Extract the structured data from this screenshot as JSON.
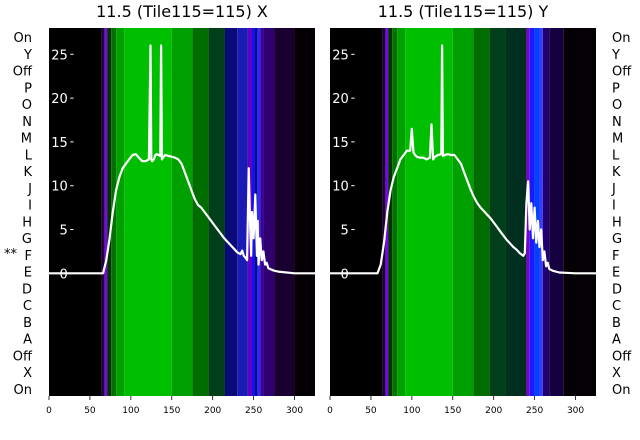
{
  "row_labels_left": [
    "On",
    "Y",
    "Off",
    "P",
    "O",
    "N",
    "M",
    "L",
    "K",
    "J",
    "I",
    "H",
    "G",
    "F",
    "E",
    "D",
    "C",
    "B",
    "A",
    "Off",
    "X",
    "On"
  ],
  "row_labels_right": [
    "On",
    "Y",
    "Off",
    "P",
    "O",
    "N",
    "M",
    "L",
    "K",
    "J",
    "I",
    "H",
    "G",
    "F",
    "E",
    "D",
    "C",
    "B",
    "A",
    "Off",
    "X",
    "On"
  ],
  "marker_text": "**",
  "marker_row": "F",
  "colors": {
    "background_dark": "#000000",
    "green": "#00cc00",
    "blue": "#0000ff",
    "purple": "#8000ff",
    "curve": "#ffffff"
  },
  "chart_data": [
    {
      "type": "heatmap",
      "title": "11.5 (Tile115=115) X",
      "xlabel": "",
      "ylabel": "",
      "xlim": [
        0,
        325
      ],
      "ylim": [
        -14,
        28
      ],
      "x_ticks": [
        0,
        50,
        100,
        150,
        200,
        250,
        300
      ],
      "y_ticks": [
        0,
        5,
        10,
        15,
        20,
        25
      ],
      "heatmap_bands": [
        {
          "from": 0,
          "to": 64,
          "color": "#000000"
        },
        {
          "from": 64,
          "to": 68,
          "color": "#200030"
        },
        {
          "from": 68,
          "to": 71,
          "color": "#8000ff"
        },
        {
          "from": 71,
          "to": 76,
          "color": "#003300"
        },
        {
          "from": 76,
          "to": 82,
          "color": "#007000"
        },
        {
          "from": 82,
          "to": 92,
          "color": "#00a000"
        },
        {
          "from": 92,
          "to": 150,
          "color": "#00bf00"
        },
        {
          "from": 150,
          "to": 175,
          "color": "#00a000"
        },
        {
          "from": 175,
          "to": 195,
          "color": "#006d00"
        },
        {
          "from": 195,
          "to": 215,
          "color": "#003f1a"
        },
        {
          "from": 215,
          "to": 230,
          "color": "#0a0a7a"
        },
        {
          "from": 230,
          "to": 243,
          "color": "#1a1ab5"
        },
        {
          "from": 243,
          "to": 248,
          "color": "#6000c0"
        },
        {
          "from": 248,
          "to": 251,
          "color": "#1010ff"
        },
        {
          "from": 251,
          "to": 255,
          "color": "#0a0a90"
        },
        {
          "from": 255,
          "to": 258,
          "color": "#2a2aff"
        },
        {
          "from": 258,
          "to": 262,
          "color": "#3a00a0"
        },
        {
          "from": 262,
          "to": 275,
          "color": "#300070"
        },
        {
          "from": 275,
          "to": 300,
          "color": "#1a0030"
        },
        {
          "from": 300,
          "to": 325,
          "color": "#050005"
        }
      ],
      "curve": {
        "x": [
          0,
          60,
          66,
          70,
          74,
          78,
          82,
          86,
          90,
          94,
          98,
          102,
          106,
          110,
          114,
          118,
          122,
          124,
          125,
          126,
          128,
          130,
          132,
          134,
          136,
          137,
          138,
          140,
          142,
          146,
          150,
          154,
          158,
          162,
          166,
          170,
          174,
          178,
          182,
          186,
          190,
          194,
          198,
          202,
          206,
          210,
          214,
          218,
          222,
          226,
          230,
          234,
          236,
          238,
          240,
          242,
          244,
          246,
          247,
          248,
          250,
          252,
          254,
          255,
          256,
          258,
          260,
          262,
          264,
          266,
          268,
          270,
          275,
          280,
          300,
          325
        ],
        "y": [
          0,
          0,
          0,
          1.5,
          4,
          7,
          9.5,
          11,
          12,
          12.5,
          13,
          13.5,
          13.6,
          13.2,
          12.8,
          12.8,
          13,
          26,
          13,
          12.8,
          13,
          13.5,
          13.6,
          13.5,
          13.4,
          26,
          13,
          13.3,
          13.5,
          13.4,
          13.3,
          13.2,
          13,
          12.5,
          11.5,
          10.5,
          9.5,
          8.5,
          7.8,
          7.5,
          7,
          6.5,
          6,
          5.5,
          5,
          4.5,
          4,
          3.6,
          3.2,
          2.8,
          2.4,
          2.2,
          2.6,
          2,
          1.8,
          1.5,
          12,
          5,
          2,
          7,
          4,
          9,
          2,
          6,
          1,
          4,
          1.5,
          2.5,
          1,
          1.2,
          0.6,
          0.5,
          0.3,
          0.2,
          0,
          0
        ]
      }
    },
    {
      "type": "heatmap",
      "title": "11.5 (Tile115=115) Y",
      "xlabel": "",
      "ylabel": "",
      "xlim": [
        0,
        325
      ],
      "ylim": [
        -14,
        28
      ],
      "x_ticks": [
        0,
        50,
        100,
        150,
        200,
        250,
        300
      ],
      "y_ticks": [
        0,
        5,
        10,
        15,
        20,
        25
      ],
      "heatmap_bands": [
        {
          "from": 0,
          "to": 64,
          "color": "#000000"
        },
        {
          "from": 64,
          "to": 68,
          "color": "#200030"
        },
        {
          "from": 68,
          "to": 71,
          "color": "#8000ff"
        },
        {
          "from": 71,
          "to": 76,
          "color": "#003300"
        },
        {
          "from": 76,
          "to": 82,
          "color": "#007000"
        },
        {
          "from": 82,
          "to": 92,
          "color": "#00a000"
        },
        {
          "from": 92,
          "to": 150,
          "color": "#00bf00"
        },
        {
          "from": 150,
          "to": 175,
          "color": "#00a000"
        },
        {
          "from": 175,
          "to": 195,
          "color": "#006d00"
        },
        {
          "from": 195,
          "to": 215,
          "color": "#003f1a"
        },
        {
          "from": 215,
          "to": 240,
          "color": "#002e1f"
        },
        {
          "from": 240,
          "to": 244,
          "color": "#7a00d0"
        },
        {
          "from": 244,
          "to": 250,
          "color": "#1a1aff"
        },
        {
          "from": 250,
          "to": 256,
          "color": "#0040ff"
        },
        {
          "from": 256,
          "to": 260,
          "color": "#3a3aff"
        },
        {
          "from": 260,
          "to": 268,
          "color": "#200070"
        },
        {
          "from": 268,
          "to": 285,
          "color": "#150040"
        },
        {
          "from": 285,
          "to": 325,
          "color": "#050005"
        }
      ],
      "curve": {
        "x": [
          0,
          58,
          62,
          66,
          70,
          74,
          78,
          82,
          86,
          90,
          94,
          98,
          100,
          102,
          104,
          106,
          110,
          114,
          118,
          122,
          124,
          126,
          128,
          132,
          136,
          137,
          138,
          140,
          144,
          148,
          152,
          156,
          160,
          164,
          168,
          172,
          176,
          180,
          184,
          188,
          192,
          196,
          200,
          204,
          208,
          212,
          216,
          220,
          224,
          228,
          232,
          236,
          238,
          240,
          242,
          244,
          246,
          248,
          250,
          252,
          254,
          256,
          258,
          260,
          262,
          264,
          266,
          268,
          272,
          280,
          300,
          325
        ],
        "y": [
          0,
          0,
          1,
          3.5,
          7,
          9.5,
          11,
          12,
          13,
          13.5,
          14,
          14,
          16.5,
          13.8,
          13.5,
          13.3,
          13.2,
          13.2,
          13,
          13.2,
          17,
          13,
          13.3,
          13.5,
          13.6,
          26,
          13.4,
          13.5,
          13.6,
          13.5,
          13.5,
          13,
          12.5,
          11.5,
          10.5,
          9.5,
          8.7,
          8,
          7.5,
          7.1,
          6.7,
          6.3,
          5.8,
          5.3,
          4.8,
          4.3,
          3.8,
          3.4,
          3,
          2.7,
          2.3,
          2,
          2.3,
          8,
          10.5,
          5,
          8,
          4,
          7.5,
          3.5,
          6,
          3,
          5,
          1.5,
          2.5,
          0.8,
          1.2,
          0.5,
          0.3,
          0.1,
          0,
          0
        ]
      }
    }
  ]
}
